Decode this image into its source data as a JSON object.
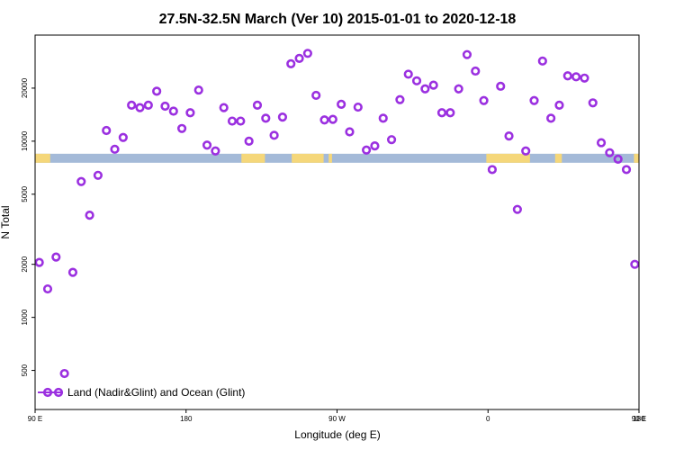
{
  "chart_data": {
    "type": "scatter",
    "title": "27.5N-32.5N March (Ver 10)   2015-01-01 to 2020-12-18",
    "xlabel": "Longitude (deg E)",
    "ylabel": "N Total",
    "xlim": [
      90,
      450
    ],
    "ylim_log": [
      300,
      40000
    ],
    "x_ticks": [
      {
        "value": 90,
        "label": "90 E"
      },
      {
        "value": 180,
        "label": "180"
      },
      {
        "value": 270,
        "label": "90 W"
      },
      {
        "value": 360,
        "label": "0"
      },
      {
        "value": 450,
        "label": "90 E"
      },
      {
        "value": 540,
        "label": "180"
      }
    ],
    "y_ticks": [
      {
        "value": 500,
        "label": "500"
      },
      {
        "value": 1000,
        "label": "1000"
      },
      {
        "value": 2000,
        "label": "2000"
      },
      {
        "value": 5000,
        "label": "5000"
      },
      {
        "value": 10000,
        "label": "10000"
      },
      {
        "value": 20000,
        "label": "20000"
      }
    ],
    "series": [
      {
        "name": "Land (Nadir&Glint) and Ocean (Glint)",
        "color": "#9b30e0",
        "x": [
          92.5,
          97.5,
          102.5,
          107.5,
          112.5,
          117.5,
          122.5,
          127.5,
          132.5,
          137.5,
          142.5,
          147.5,
          152.5,
          157.5,
          162.5,
          167.5,
          172.5,
          177.5,
          182.5,
          187.5,
          192.5,
          197.5,
          202.5,
          207.5,
          212.5,
          217.5,
          222.5,
          227.5,
          232.5,
          237.5,
          242.5,
          247.5,
          252.5,
          257.5,
          262.5,
          267.5,
          272.5,
          277.5,
          282.5,
          287.5,
          292.5,
          297.5,
          302.5,
          307.5,
          312.5,
          317.5,
          322.5,
          327.5,
          332.5,
          337.5,
          342.5,
          347.5,
          352.5,
          357.5,
          362.5,
          367.5,
          372.5,
          377.5,
          382.5,
          387.5,
          392.5,
          397.5,
          402.5,
          407.5,
          412.5,
          417.5,
          422.5,
          427.5,
          432.5,
          437.5,
          442.5,
          447.5
        ],
        "values": [
          2050,
          1450,
          2200,
          480,
          1800,
          5900,
          3800,
          6400,
          11500,
          9000,
          10500,
          16000,
          15500,
          16000,
          19200,
          15800,
          14800,
          11800,
          14500,
          19500,
          9500,
          8800,
          15500,
          13000,
          13000,
          10000,
          16000,
          13500,
          10800,
          13700,
          27500,
          29500,
          31500,
          18200,
          13200,
          13300,
          16200,
          11300,
          15600,
          8900,
          9400,
          13500,
          10200,
          17200,
          24000,
          22000,
          19800,
          20800,
          14500,
          14500,
          19800,
          31000,
          25000,
          17000,
          6900,
          20500,
          10700,
          4100,
          8800,
          17000,
          28500,
          13500,
          16000,
          23500,
          23200,
          22800,
          16500,
          9800,
          8600,
          7900,
          6900,
          2000
        ]
      }
    ],
    "surface_bar": {
      "y_value": 8000,
      "land_label": "Land",
      "ocean_label": "Ocean",
      "land_color": "#f5d77a",
      "ocean_color": "#a4bad8",
      "land_ranges": [
        [
          90,
          99
        ],
        [
          213,
          227
        ],
        [
          243,
          262
        ],
        [
          265,
          267
        ],
        [
          359,
          385
        ],
        [
          400,
          404
        ],
        [
          447,
          450
        ]
      ]
    },
    "legend": {
      "position": "bottom-left",
      "label": "Land (Nadir&Glint) and Ocean (Glint)"
    }
  }
}
